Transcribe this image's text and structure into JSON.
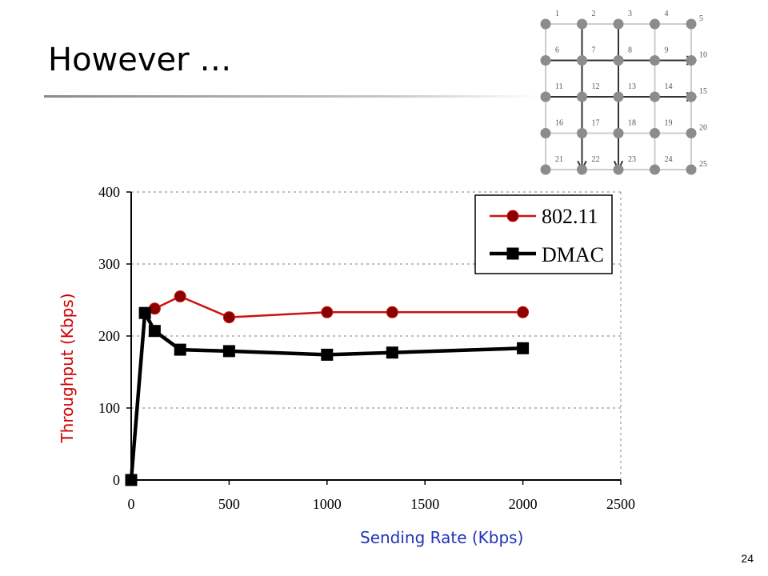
{
  "slide": {
    "title": "However …",
    "page_number": "24"
  },
  "grid_diagram": {
    "node_labels": [
      "1",
      "2",
      "3",
      "4",
      "5",
      "6",
      "7",
      "8",
      "9",
      "10",
      "11",
      "12",
      "13",
      "14",
      "15",
      "16",
      "17",
      "18",
      "19",
      "20",
      "21",
      "22",
      "23",
      "24",
      "25"
    ]
  },
  "colors": {
    "series_80211": "#cc1111",
    "marker_80211": "#8b0000",
    "series_dmac": "#000000",
    "ylabel": "#cc0000",
    "xlabel": "#2233bb"
  },
  "chart_data": {
    "type": "line",
    "xlabel": "Sending Rate (Kbps)",
    "ylabel": "Throughput (Kbps)",
    "xlim": [
      0,
      2500
    ],
    "ylim": [
      0,
      400
    ],
    "x_ticks": [
      0,
      500,
      1000,
      1500,
      2000,
      2500
    ],
    "y_ticks": [
      0,
      100,
      200,
      300,
      400
    ],
    "grid": "horizontal dotted",
    "legend_position": "top-right",
    "series": [
      {
        "name": "802.11",
        "marker": "circle",
        "points": [
          [
            120,
            238
          ],
          [
            250,
            255
          ],
          [
            500,
            226
          ],
          [
            1000,
            233
          ],
          [
            1333,
            233
          ],
          [
            2000,
            233
          ]
        ]
      },
      {
        "name": "DMAC",
        "marker": "square",
        "points": [
          [
            0,
            0
          ],
          [
            70,
            232
          ],
          [
            120,
            207
          ],
          [
            250,
            181
          ],
          [
            500,
            179
          ],
          [
            1000,
            174
          ],
          [
            1333,
            177
          ],
          [
            2000,
            183
          ]
        ]
      }
    ]
  }
}
